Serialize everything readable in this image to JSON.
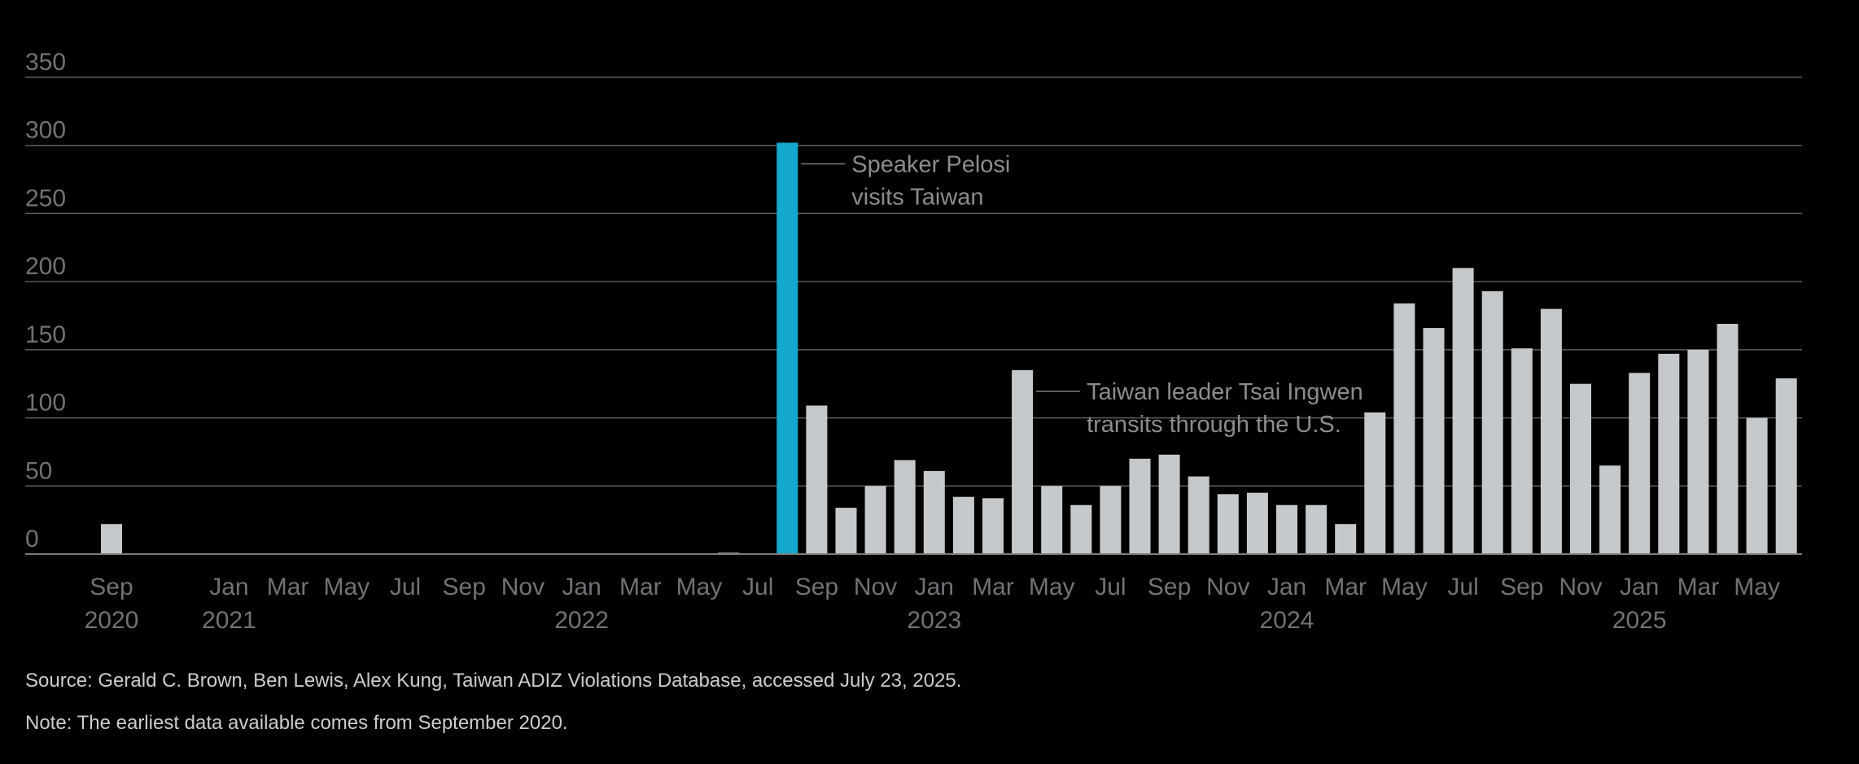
{
  "chart_data": {
    "type": "bar",
    "ylim": [
      0,
      350
    ],
    "yticks": [
      0,
      50,
      100,
      150,
      200,
      250,
      300,
      350
    ],
    "grid": true,
    "x": [
      "2020-09",
      "2020-10",
      "2020-11",
      "2020-12",
      "2021-01",
      "2021-02",
      "2021-03",
      "2021-04",
      "2021-05",
      "2021-06",
      "2021-07",
      "2021-08",
      "2021-09",
      "2021-10",
      "2021-11",
      "2021-12",
      "2022-01",
      "2022-02",
      "2022-03",
      "2022-04",
      "2022-05",
      "2022-06",
      "2022-07",
      "2022-08",
      "2022-09",
      "2022-10",
      "2022-11",
      "2022-12",
      "2023-01",
      "2023-02",
      "2023-03",
      "2023-04",
      "2023-05",
      "2023-06",
      "2023-07",
      "2023-08",
      "2023-09",
      "2023-10",
      "2023-11",
      "2023-12",
      "2024-01",
      "2024-02",
      "2024-03",
      "2024-04",
      "2024-05",
      "2024-06",
      "2024-07",
      "2024-08",
      "2024-09",
      "2024-10",
      "2024-11",
      "2024-12",
      "2025-01",
      "2025-02",
      "2025-03",
      "2025-04",
      "2025-05",
      "2025-06",
      "2025-07"
    ],
    "values": [
      22,
      0,
      0,
      0,
      0,
      0,
      0,
      0,
      0,
      0,
      0,
      0,
      0,
      0,
      0,
      0,
      0,
      0,
      0,
      0,
      0,
      1,
      0,
      302,
      109,
      34,
      50,
      69,
      61,
      42,
      41,
      135,
      50,
      36,
      50,
      70,
      73,
      57,
      44,
      45,
      36,
      36,
      22,
      104,
      184,
      166,
      210,
      193,
      151,
      180,
      125,
      65,
      133,
      147,
      150,
      169,
      100,
      129,
      0
    ],
    "highlight_index": 23,
    "highlight_color": "#15a8cc",
    "bar_color": "#c6c9cc",
    "x_tick_labels": [
      {
        "index": 0,
        "month": "Sep",
        "year": "2020"
      },
      {
        "index": 4,
        "month": "Jan",
        "year": "2021"
      },
      {
        "index": 6,
        "month": "Mar",
        "year": ""
      },
      {
        "index": 8,
        "month": "May",
        "year": ""
      },
      {
        "index": 10,
        "month": "Jul",
        "year": ""
      },
      {
        "index": 12,
        "month": "Sep",
        "year": ""
      },
      {
        "index": 14,
        "month": "Nov",
        "year": ""
      },
      {
        "index": 16,
        "month": "Jan",
        "year": ""
      },
      {
        "index": 18,
        "month": "Mar",
        "year": ""
      },
      {
        "index": 20,
        "month": "May",
        "year": ""
      },
      {
        "index": 22,
        "month": "Jul",
        "year": ""
      },
      {
        "index": 24,
        "month": "Sep",
        "year": ""
      },
      {
        "index": 26,
        "month": "Nov",
        "year": ""
      },
      {
        "index": 28,
        "month": "Jan",
        "year": ""
      },
      {
        "index": 30,
        "month": "Mar",
        "year": ""
      },
      {
        "index": 32,
        "month": "May",
        "year": ""
      },
      {
        "index": 34,
        "month": "Jul",
        "year": ""
      },
      {
        "index": 36,
        "month": "Sep",
        "year": ""
      },
      {
        "index": 38,
        "month": "Nov",
        "year": ""
      },
      {
        "index": 40,
        "month": "Jan",
        "year": ""
      },
      {
        "index": 42,
        "month": "Mar",
        "year": ""
      },
      {
        "index": 44,
        "month": "May",
        "year": ""
      },
      {
        "index": 46,
        "month": "Jul",
        "year": ""
      },
      {
        "index": 48,
        "month": "Sep",
        "year": ""
      },
      {
        "index": 50,
        "month": "Nov",
        "year": ""
      },
      {
        "index": 52,
        "month": "Jan",
        "year": ""
      },
      {
        "index": 54,
        "month": "Mar",
        "year": ""
      },
      {
        "index": 56,
        "month": "May",
        "year": ""
      }
    ],
    "year_labels": [
      {
        "index": 0,
        "year": "2020"
      },
      {
        "index": 4,
        "year": "2021"
      },
      {
        "index": 16,
        "year": "2022"
      },
      {
        "index": 28,
        "year": "2023"
      },
      {
        "index": 40,
        "year": "2024"
      },
      {
        "index": 52,
        "year": "2025"
      }
    ],
    "annotations": [
      {
        "index": 23,
        "lines": [
          "Speaker Pelosi",
          "visits Taiwan"
        ]
      },
      {
        "index": 31,
        "lines": [
          "Taiwan leader Tsai Ingwen",
          "transits through the U.S."
        ]
      }
    ]
  },
  "footer": {
    "source": "Source: Gerald C. Brown, Ben Lewis, Alex Kung, Taiwan ADIZ Violations Database, accessed July 23, 2025.",
    "note": "Note: The earliest data available comes from September 2020."
  }
}
